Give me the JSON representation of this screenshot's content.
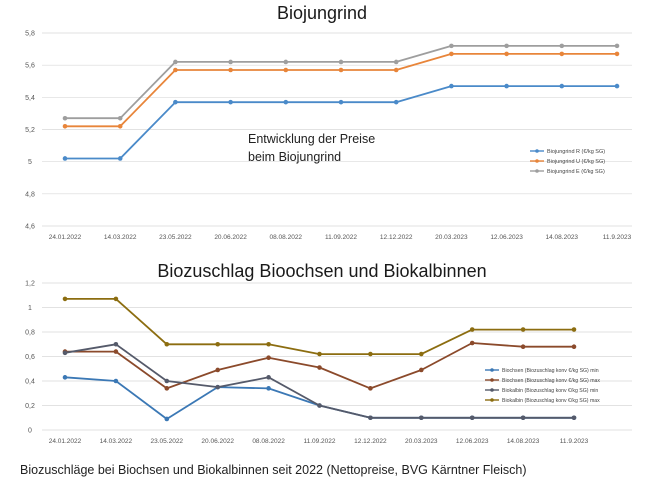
{
  "caption": "Biozuschläge bei Biochsen und Biokalbinnen seit 2022 (Nettopreise, BVG Kärntner Fleisch)",
  "chart_data": [
    {
      "type": "line",
      "title": "Biojungrind",
      "annotation": [
        "Entwicklung der Preise",
        "beim Biojungrind"
      ],
      "categories": [
        "24.01.2022",
        "14.03.2022",
        "23.05.2022",
        "20.06.2022",
        "08.08.2022",
        "11.09.2022",
        "12.12.2022",
        "20.03.2023",
        "12.06.2023",
        "14.08.2023",
        "11.9.2023"
      ],
      "ylim": [
        4.6,
        5.8
      ],
      "yticks": [
        4.6,
        4.8,
        5,
        5.2,
        5.4,
        5.6,
        5.8
      ],
      "ytick_labels": [
        "4,6",
        "4,8",
        "5",
        "5,2",
        "5,4",
        "5,6",
        "5,8"
      ],
      "legend_position": "right",
      "series": [
        {
          "name": "Biojungrind R (€/kg SG)",
          "color": "#4a8ac9",
          "values": [
            5.02,
            5.02,
            5.37,
            5.37,
            5.37,
            5.37,
            5.37,
            5.47,
            5.47,
            5.47,
            5.47
          ]
        },
        {
          "name": "Biojungrind U (€/kg SG)",
          "color": "#e8853a",
          "values": [
            5.22,
            5.22,
            5.57,
            5.57,
            5.57,
            5.57,
            5.57,
            5.67,
            5.67,
            5.67,
            5.67
          ]
        },
        {
          "name": "Biojungrind E (€/kg SG)",
          "color": "#9e9e9e",
          "values": [
            5.27,
            5.27,
            5.62,
            5.62,
            5.62,
            5.62,
            5.62,
            5.72,
            5.72,
            5.72,
            5.72
          ]
        }
      ]
    },
    {
      "type": "line",
      "title": "Biozuschlag Bioochsen und Biokalbinnen",
      "categories": [
        "24.01.2022",
        "14.03.2022",
        "23.05.2022",
        "20.06.2022",
        "08.08.2022",
        "11.09.2022",
        "12.12.2022",
        "20.03.2023",
        "12.06.2023",
        "14.08.2023",
        "11.9.2023"
      ],
      "ylim": [
        0,
        1.2
      ],
      "yticks": [
        0,
        0.2,
        0.4,
        0.6,
        0.8,
        1,
        1.2
      ],
      "ytick_labels": [
        "0",
        "0,2",
        "0,4",
        "0,6",
        "0,8",
        "1",
        "1,2"
      ],
      "legend_position": "right",
      "series": [
        {
          "name": "Biochsen (Biozuschlag konv €/kg SG) min",
          "color": "#3b78b5",
          "values": [
            0.43,
            0.4,
            0.09,
            0.35,
            0.34,
            0.2,
            0.1,
            0.1,
            0.1,
            0.1,
            0.1
          ]
        },
        {
          "name": "Biochsen (Biozuschlag konv €/kg SG) max",
          "color": "#8b4a2b",
          "values": [
            0.64,
            0.64,
            0.34,
            0.49,
            0.59,
            0.51,
            0.34,
            0.49,
            0.71,
            0.68,
            0.68
          ]
        },
        {
          "name": "Biokalbin (Biozuschlag konv €/kg SG) min",
          "color": "#555a6a",
          "values": [
            0.63,
            0.7,
            0.4,
            0.35,
            0.43,
            0.2,
            0.1,
            0.1,
            0.1,
            0.1,
            0.1
          ]
        },
        {
          "name": "Biokalbin (Biozuschlag konv €/kg SG) max",
          "color": "#8c6d10",
          "values": [
            1.07,
            1.07,
            0.7,
            0.7,
            0.7,
            0.62,
            0.62,
            0.62,
            0.82,
            0.82,
            0.82
          ]
        }
      ]
    }
  ]
}
